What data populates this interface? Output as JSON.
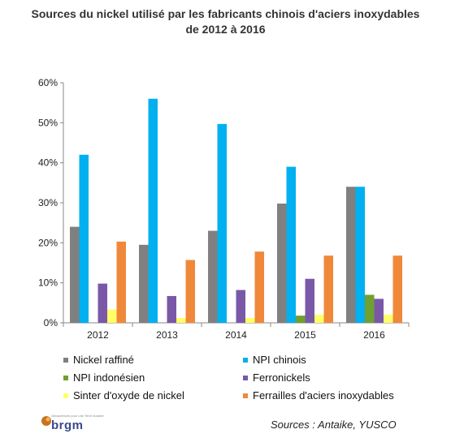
{
  "page": {
    "title_line1": "Sources du nickel utilisé par les fabricants chinois d'aciers inoxydables",
    "title_line2": "de 2012 à 2016",
    "source_note": "Sources : Antaike, YUSCO",
    "logo_text": "brgm",
    "logo_tagline": "Géosciences pour une Terre durable"
  },
  "chart_data": {
    "type": "bar",
    "categories": [
      "2012",
      "2013",
      "2014",
      "2015",
      "2016"
    ],
    "ylim": [
      0,
      60
    ],
    "yticks": [
      0,
      10,
      20,
      30,
      40,
      50,
      60
    ],
    "ytick_labels": [
      "0%",
      "10%",
      "20%",
      "30%",
      "40%",
      "50%",
      "60%"
    ],
    "grid": false,
    "legend_position": "bottom",
    "series": [
      {
        "name": "Nickel raffiné",
        "color": "#808080",
        "values": [
          24,
          19.5,
          23,
          29.8,
          34
        ]
      },
      {
        "name": "NPI chinois",
        "color": "#00b0f0",
        "values": [
          42,
          56,
          49.7,
          39,
          34
        ]
      },
      {
        "name": "NPI indonésien",
        "color": "#70a030",
        "values": [
          0,
          0,
          0,
          1.8,
          7
        ]
      },
      {
        "name": "Ferronickels",
        "color": "#7a58a8",
        "values": [
          9.8,
          6.7,
          8.2,
          11,
          6
        ]
      },
      {
        "name": "Sinter d'oxyde de nickel",
        "color": "#ffff66",
        "values": [
          3.3,
          1.2,
          1.2,
          2,
          2
        ]
      },
      {
        "name": "Ferrailles d'aciers inoxydables",
        "color": "#f0883a",
        "values": [
          20.3,
          15.7,
          17.8,
          16.8,
          16.8
        ]
      }
    ]
  }
}
